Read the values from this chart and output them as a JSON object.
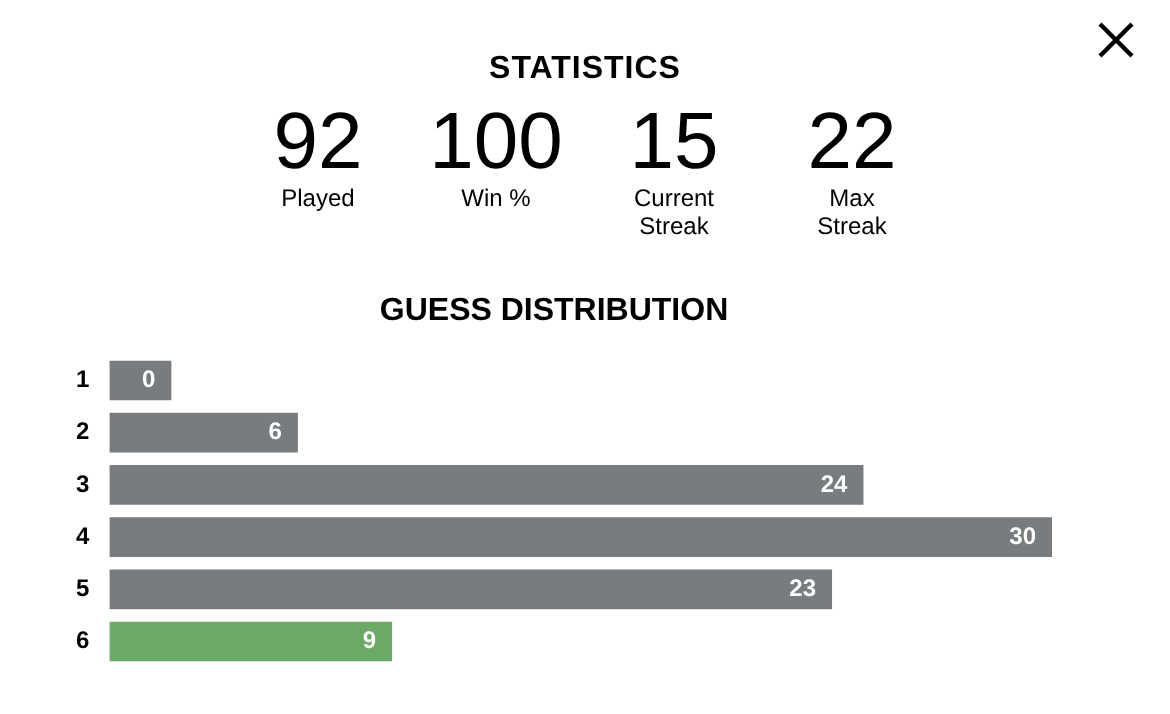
{
  "chart_data": [
    {
      "type": "other",
      "title": "STATISTICS",
      "annotations": [
        "92",
        "Played",
        "100",
        "Win %",
        "15",
        "Current Streak",
        "22",
        "Max Streak"
      ]
    },
    {
      "type": "bar",
      "orientation": "horizontal",
      "title": "GUESS DISTRIBUTION",
      "categories": [
        "1",
        "2",
        "3",
        "4",
        "5",
        "6"
      ],
      "values": [
        0,
        6,
        24,
        30,
        23,
        9
      ],
      "colors": [
        "#787c7e",
        "#787c7e",
        "#787c7e",
        "#787c7e",
        "#787c7e",
        "#6aaa64"
      ],
      "data_labels": true,
      "grid": false,
      "legend": false
    }
  ]
}
